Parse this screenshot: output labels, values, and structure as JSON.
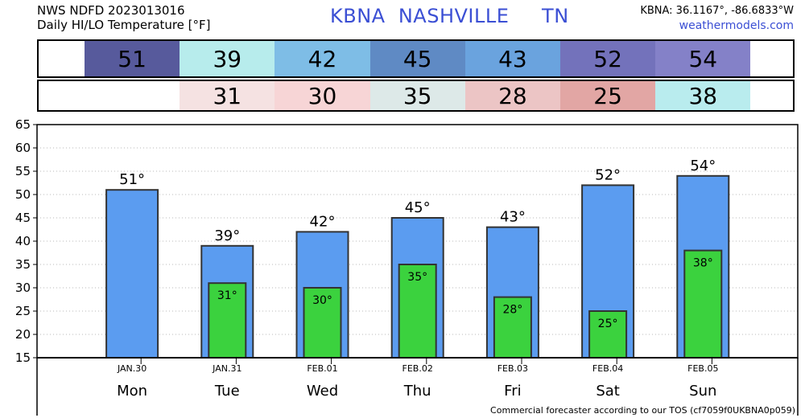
{
  "header": {
    "line1": "NWS NDFD 2023013016",
    "line2": "Daily HI/LO Temperature [°F]",
    "center": "KBNA  NASHVILLE     TN",
    "coords": "KBNA: 36.1167°, -86.6833°W",
    "site": "weathermodels.com"
  },
  "colors": {
    "hi_bar": "#5b9cf0",
    "lo_bar": "#3bd23e",
    "hi_cells": [
      "#575a9c",
      "#b7ecec",
      "#7ebde6",
      "#5f8ac4",
      "#6aa3de",
      "#7372bb",
      "#8481c8"
    ],
    "lo_cells": [
      "#ffffff",
      "#f5e2e2",
      "#f7d5d6",
      "#dde9e8",
      "#ecc5c5",
      "#e2a6a4",
      "#b9ecee"
    ]
  },
  "chart_data": {
    "type": "bar",
    "days": [
      "Mon",
      "Tue",
      "Wed",
      "Thu",
      "Fri",
      "Sat",
      "Sun"
    ],
    "dates": [
      "JAN.30",
      "JAN.31",
      "FEB.01",
      "FEB.02",
      "FEB.03",
      "FEB.04",
      "FEB.05"
    ],
    "series": [
      {
        "name": "HI",
        "values": [
          51,
          39,
          42,
          45,
          43,
          52,
          54
        ]
      },
      {
        "name": "LO",
        "values": [
          null,
          31,
          30,
          35,
          28,
          25,
          38
        ]
      }
    ],
    "hi_labels": [
      "51°",
      "39°",
      "42°",
      "45°",
      "43°",
      "52°",
      "54°"
    ],
    "lo_labels": [
      "",
      "31°",
      "30°",
      "35°",
      "28°",
      "25°",
      "38°"
    ],
    "hi_strip": [
      "51",
      "39",
      "42",
      "45",
      "43",
      "52",
      "54"
    ],
    "lo_strip": [
      "",
      "31",
      "30",
      "35",
      "28",
      "25",
      "38"
    ],
    "yticks": [
      "15",
      "20",
      "25",
      "30",
      "35",
      "40",
      "45",
      "50",
      "55",
      "60",
      "65"
    ],
    "ylim": [
      15,
      65
    ],
    "grid": true
  },
  "footer": "Commercial forecaster according to our TOS (cf7059f0UKBNA0p059)"
}
